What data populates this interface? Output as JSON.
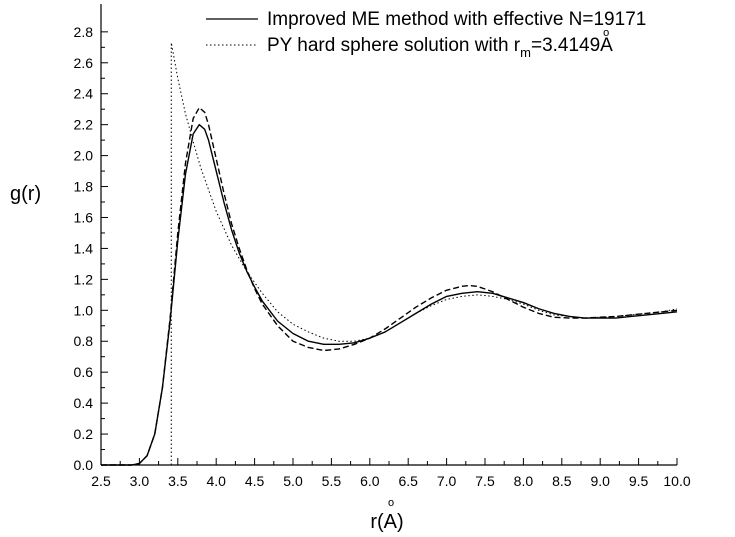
{
  "chart_data": {
    "type": "line",
    "title": "",
    "xlabel": "r(A)",
    "xlabel_ring": "o",
    "ylabel": "g(r)",
    "xlim": [
      2.5,
      10.0
    ],
    "ylim": [
      0.0,
      2.98
    ],
    "x_ticks": [
      2.5,
      3.0,
      3.5,
      4.0,
      4.5,
      5.0,
      5.5,
      6.0,
      6.5,
      7.0,
      7.5,
      8.0,
      8.5,
      9.0,
      9.5,
      10.0
    ],
    "x_tick_labels": [
      "2.5",
      "3.0",
      "3.5",
      "4.0",
      "4.5",
      "5.0",
      "5.5",
      "6.0",
      "6.5",
      "7.0",
      "7.5",
      "8.0",
      "8.5",
      "9.0",
      "9.5",
      "10.0"
    ],
    "y_ticks": [
      0.0,
      0.2,
      0.4,
      0.6,
      0.8,
      1.0,
      1.2,
      1.4,
      1.6,
      1.8,
      2.0,
      2.2,
      2.4,
      2.6,
      2.8
    ],
    "y_tick_labels": [
      "0.0",
      "0.2",
      "0.4",
      "0.6",
      "0.8",
      "1.0",
      "1.2",
      "1.4",
      "1.6",
      "1.8",
      "2.0",
      "2.2",
      "2.4",
      "2.6",
      "2.8"
    ],
    "grid": false,
    "legend_position": "top-right",
    "legend": [
      {
        "text": "Improved ME method with effective N=19171",
        "style": "solid"
      },
      {
        "text_pre": "PY hard sphere solution with r",
        "text_sub": "m",
        "text_post": "=3.4149A",
        "text_ring": "o",
        "style": "dotted"
      }
    ],
    "series": [
      {
        "style": "solid",
        "x": [
          2.5,
          2.9,
          3.0,
          3.1,
          3.2,
          3.3,
          3.4,
          3.5,
          3.6,
          3.7,
          3.78,
          3.85,
          3.9,
          4.0,
          4.1,
          4.2,
          4.3,
          4.4,
          4.5,
          4.6,
          4.8,
          5.0,
          5.2,
          5.4,
          5.6,
          5.8,
          6.0,
          6.2,
          6.4,
          6.6,
          6.8,
          7.0,
          7.2,
          7.4,
          7.6,
          7.8,
          8.0,
          8.2,
          8.4,
          8.6,
          8.8,
          9.0,
          9.2,
          9.4,
          9.6,
          9.8,
          10.0
        ],
        "y": [
          0.0,
          0.0,
          0.01,
          0.06,
          0.2,
          0.5,
          0.93,
          1.45,
          1.88,
          2.14,
          2.2,
          2.17,
          2.1,
          1.9,
          1.7,
          1.52,
          1.37,
          1.25,
          1.15,
          1.06,
          0.93,
          0.85,
          0.8,
          0.78,
          0.78,
          0.79,
          0.82,
          0.86,
          0.92,
          0.98,
          1.04,
          1.09,
          1.11,
          1.12,
          1.11,
          1.08,
          1.05,
          1.01,
          0.98,
          0.96,
          0.95,
          0.95,
          0.95,
          0.96,
          0.97,
          0.98,
          0.99
        ]
      },
      {
        "style": "dashed",
        "x": [
          2.5,
          2.9,
          3.0,
          3.1,
          3.2,
          3.3,
          3.4,
          3.5,
          3.6,
          3.7,
          3.78,
          3.85,
          3.9,
          4.0,
          4.1,
          4.2,
          4.3,
          4.4,
          4.5,
          4.6,
          4.8,
          5.0,
          5.2,
          5.4,
          5.6,
          5.8,
          6.0,
          6.2,
          6.4,
          6.6,
          6.8,
          7.0,
          7.2,
          7.3,
          7.4,
          7.6,
          7.8,
          8.0,
          8.2,
          8.4,
          8.6,
          8.8,
          9.0,
          9.2,
          9.4,
          9.6,
          9.8,
          10.0
        ],
        "y": [
          0.0,
          0.0,
          0.01,
          0.06,
          0.2,
          0.5,
          0.95,
          1.5,
          1.95,
          2.24,
          2.31,
          2.28,
          2.2,
          1.98,
          1.76,
          1.56,
          1.4,
          1.26,
          1.14,
          1.04,
          0.9,
          0.8,
          0.76,
          0.74,
          0.75,
          0.78,
          0.82,
          0.88,
          0.95,
          1.02,
          1.08,
          1.13,
          1.155,
          1.16,
          1.155,
          1.12,
          1.07,
          1.02,
          0.98,
          0.955,
          0.95,
          0.95,
          0.955,
          0.96,
          0.97,
          0.98,
          0.99,
          1.0
        ]
      },
      {
        "style": "dotted",
        "x": [
          3.415,
          3.415,
          3.5,
          3.6,
          3.7,
          3.8,
          3.9,
          4.0,
          4.2,
          4.4,
          4.6,
          4.8,
          5.0,
          5.2,
          5.4,
          5.6,
          5.8,
          6.0,
          6.2,
          6.4,
          6.6,
          6.8,
          7.0,
          7.2,
          7.4,
          7.6,
          7.8,
          8.0,
          8.2,
          8.4,
          8.6,
          8.8,
          9.0,
          9.2,
          9.4,
          9.6,
          9.8,
          10.0
        ],
        "y": [
          0.0,
          2.73,
          2.5,
          2.27,
          2.09,
          1.92,
          1.78,
          1.64,
          1.42,
          1.25,
          1.11,
          0.99,
          0.91,
          0.86,
          0.82,
          0.8,
          0.8,
          0.82,
          0.86,
          0.92,
          0.98,
          1.03,
          1.07,
          1.09,
          1.1,
          1.09,
          1.07,
          1.04,
          1.0,
          0.97,
          0.96,
          0.95,
          0.955,
          0.96,
          0.97,
          0.98,
          0.99,
          1.01
        ]
      }
    ]
  }
}
